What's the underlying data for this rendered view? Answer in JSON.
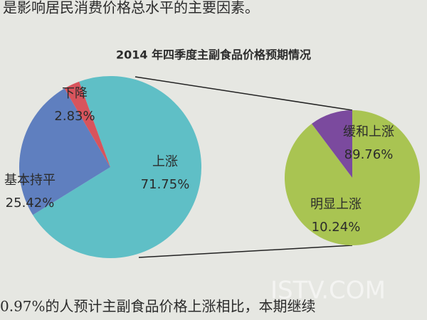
{
  "header_text": "是影响居民消费价格总水平的主要因素。",
  "footer_text": "0.97%的人预计主副食品价格上涨相比，本期继续",
  "watermark": "ISTV.COM",
  "chart_data": {
    "type": "pie_of_pie",
    "title": "2014 年四季度主副食品价格预期情况",
    "categories": [
      "上涨",
      "基本持平",
      "下降"
    ],
    "values": [
      71.75,
      25.42,
      2.83
    ],
    "value_labels": [
      "71.75%",
      "25.42%",
      "2.83%"
    ],
    "colors": [
      "#5fbfc6",
      "#5f7fbf",
      "#d8545c"
    ],
    "secondary": {
      "categories": [
        "缓和上涨",
        "明显上涨"
      ],
      "values": [
        89.76,
        10.24
      ],
      "value_labels": [
        "89.76%",
        "10.24%"
      ],
      "colors": [
        "#a9c452",
        "#7b4a9e"
      ]
    }
  }
}
